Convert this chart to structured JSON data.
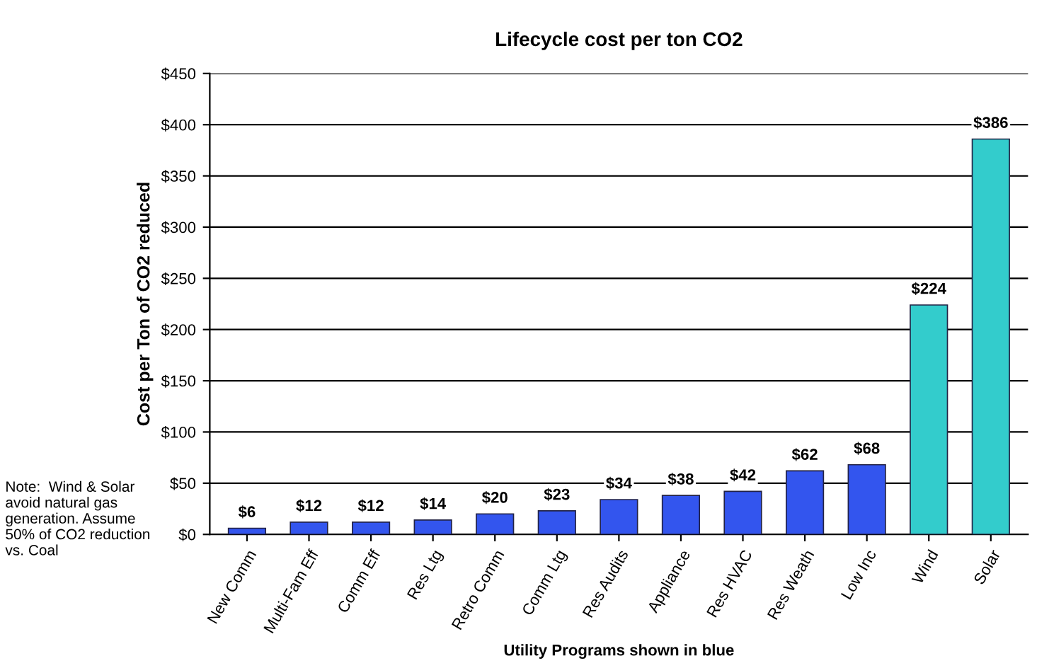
{
  "chart_data": {
    "type": "bar",
    "title": "Lifecycle cost per ton CO2",
    "xlabel": "Utility Programs shown in blue",
    "ylabel": "Cost per Ton of CO2 reduced",
    "categories": [
      "New Comm",
      "Multi-Fam Eff",
      "Comm Eff",
      "Res Ltg",
      "Retro Comm",
      "Comm Ltg",
      "Res Audits",
      "Appliance",
      "Res HVAC",
      "Res Weath",
      "Low Inc",
      "Wind",
      "Solar"
    ],
    "values": [
      6,
      12,
      12,
      14,
      20,
      23,
      34,
      38,
      42,
      62,
      68,
      224,
      386
    ],
    "colors": [
      "#3355ee",
      "#3355ee",
      "#3355ee",
      "#3355ee",
      "#3355ee",
      "#3355ee",
      "#3355ee",
      "#3355ee",
      "#3355ee",
      "#3355ee",
      "#3355ee",
      "#33cccc",
      "#33cccc"
    ],
    "value_labels": [
      "$6",
      "$12",
      "$12",
      "$14",
      "$20",
      "$23",
      "$34",
      "$38",
      "$42",
      "$62",
      "$68",
      "$224",
      "$386"
    ],
    "ylim": [
      0,
      450
    ],
    "yticks": [
      {
        "value": 0,
        "label": "$0"
      },
      {
        "value": 50,
        "label": "$50"
      },
      {
        "value": 100,
        "label": "$100"
      },
      {
        "value": 150,
        "label": "$150"
      },
      {
        "value": 200,
        "label": "$200"
      },
      {
        "value": 250,
        "label": "$250"
      },
      {
        "value": 300,
        "label": "$300"
      },
      {
        "value": 350,
        "label": "$350"
      },
      {
        "value": 400,
        "label": "$400"
      },
      {
        "value": 450,
        "label": "$450"
      }
    ],
    "grid": "y",
    "annotations": [
      "Note:  Wind & Solar avoid natural gas generation. Assume 50% of CO2 reduction vs. Coal"
    ]
  }
}
